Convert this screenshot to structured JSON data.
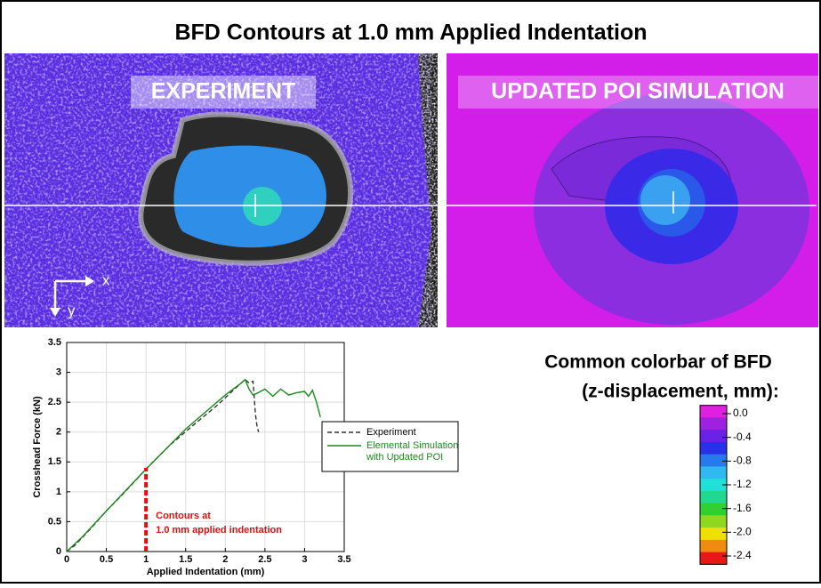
{
  "title": "BFD Contours at 1.0 mm Applied Indentation",
  "panels": [
    {
      "label": "EXPERIMENT"
    },
    {
      "label": "UPDATED POI SIMULATION"
    }
  ],
  "axes_arrows": {
    "x": "x",
    "y": "y"
  },
  "colorbar": {
    "title": [
      "Common colorbar of BFD",
      "(z-displacement, mm):"
    ],
    "ticks": [
      {
        "value": 0,
        "label": "0.0"
      },
      -0.4,
      -0.8,
      -1.2,
      -1.6,
      {
        "value": -2,
        "label": "-2.0"
      },
      -2.4
    ],
    "colors": [
      "#e020e0",
      "#a020e0",
      "#6a22e6",
      "#2a30e8",
      "#2878ee",
      "#30b8f0",
      "#20e0d8",
      "#20d890",
      "#30d030",
      "#90d820",
      "#f0e000",
      "#f08a10",
      "#e81818"
    ]
  },
  "chart_data": {
    "type": "line",
    "xlabel": "Applied Indentation (mm)",
    "ylabel": "Crosshead Force (kN)",
    "xlim": [
      0,
      3.5
    ],
    "ylim": [
      0,
      3.5
    ],
    "xticks": [
      0,
      0.5,
      1,
      1.5,
      2,
      2.5,
      3,
      3.5
    ],
    "yticks": [
      0,
      0.5,
      1,
      1.5,
      2,
      2.5,
      3,
      3.5
    ],
    "grid": true,
    "legend": "right",
    "series": [
      {
        "name": "Experiment",
        "color": "#333333",
        "dash": true,
        "x": [
          0,
          0.1,
          0.3,
          0.5,
          0.7,
          1.0,
          1.3,
          1.6,
          1.9,
          2.1,
          2.25,
          2.3,
          2.35,
          2.38,
          2.4,
          2.42
        ],
        "values": [
          0,
          0.1,
          0.38,
          0.68,
          0.95,
          1.38,
          1.78,
          2.12,
          2.45,
          2.7,
          2.88,
          2.82,
          2.85,
          2.3,
          2.1,
          2.0
        ]
      },
      {
        "name": "Elemental Simulation\nwith Updated POI",
        "color": "#1a8a1a",
        "dash": false,
        "x": [
          0,
          0.2,
          0.5,
          1.0,
          1.5,
          2.0,
          2.2,
          2.25,
          2.3,
          2.35,
          2.4,
          2.5,
          2.6,
          2.7,
          2.8,
          2.9,
          3.0,
          3.05,
          3.1,
          3.15,
          3.2
        ],
        "values": [
          0,
          0.25,
          0.68,
          1.38,
          2.05,
          2.62,
          2.82,
          2.88,
          2.72,
          2.62,
          2.65,
          2.72,
          2.6,
          2.72,
          2.62,
          2.66,
          2.68,
          2.6,
          2.7,
          2.5,
          2.25
        ]
      }
    ],
    "annotation": {
      "x": 1,
      "y": 1.4,
      "color": "#e01010",
      "text": [
        "Contours at",
        "1.0 mm applied indentation"
      ]
    }
  }
}
